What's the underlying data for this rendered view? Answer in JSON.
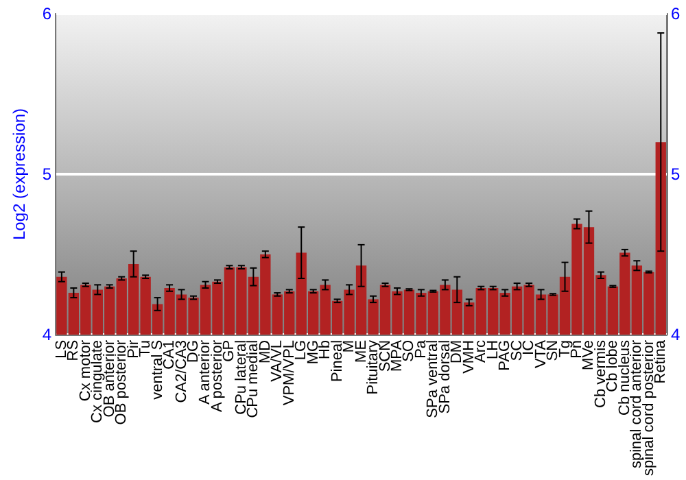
{
  "chart_data": {
    "type": "bar",
    "ylabel": "Log2 (expression)",
    "categories": [
      "LS",
      "RS",
      "Cx motor",
      "Cx cingulate",
      "OB anterior",
      "OB posterior",
      "Pir",
      "Tu",
      "ventral S",
      "CA1",
      "CA2/CA3",
      "DG",
      "A anterior",
      "A posterior",
      "GP",
      "CPu lateral",
      "CPu medial",
      "MD",
      "VA/VL",
      "VPM/VPL",
      "LG",
      "MG",
      "Hb",
      "Pineal",
      "M",
      "ME",
      "Pituitary",
      "SCN",
      "MPA",
      "SO",
      "Pa",
      "SPa ventral",
      "SPa dorsal",
      "DM",
      "VMH",
      "Arc",
      "LH",
      "PAG",
      "SC",
      "IC",
      "VTA",
      "SN",
      "Tg",
      "Pn",
      "MVe",
      "Cb vermis",
      "Cb lobe",
      "Cb nucleus",
      "spinal cord anterior",
      "spinal cord posterior",
      "Retina"
    ],
    "values": [
      4.36,
      4.26,
      4.31,
      4.28,
      4.3,
      4.35,
      4.44,
      4.36,
      4.19,
      4.29,
      4.25,
      4.23,
      4.31,
      4.33,
      4.42,
      4.42,
      4.36,
      4.5,
      4.25,
      4.27,
      4.51,
      4.27,
      4.31,
      4.21,
      4.28,
      4.43,
      4.22,
      4.31,
      4.27,
      4.28,
      4.26,
      4.27,
      4.31,
      4.28,
      4.2,
      4.29,
      4.29,
      4.26,
      4.3,
      4.31,
      4.25,
      4.25,
      4.36,
      4.69,
      4.67,
      4.37,
      4.3,
      4.51,
      4.43,
      4.39,
      5.2
    ],
    "errors": [
      0.03,
      0.03,
      0.01,
      0.03,
      0.01,
      0.01,
      0.08,
      0.01,
      0.04,
      0.02,
      0.03,
      0.01,
      0.02,
      0.01,
      0.01,
      0.01,
      0.055,
      0.02,
      0.01,
      0.01,
      0.16,
      0.01,
      0.03,
      0.01,
      0.03,
      0.13,
      0.02,
      0.01,
      0.02,
      0.005,
      0.02,
      0.005,
      0.03,
      0.08,
      0.02,
      0.01,
      0.01,
      0.02,
      0.02,
      0.01,
      0.03,
      0.005,
      0.09,
      0.03,
      0.1,
      0.02,
      0.005,
      0.02,
      0.03,
      0.005,
      0.68
    ],
    "color": "#b22222",
    "ylim": [
      4,
      6
    ],
    "yticks": [
      4,
      5,
      6
    ],
    "y2lim": [
      4,
      6
    ],
    "y2ticks": [
      4,
      5,
      6
    ],
    "grid": "y"
  }
}
